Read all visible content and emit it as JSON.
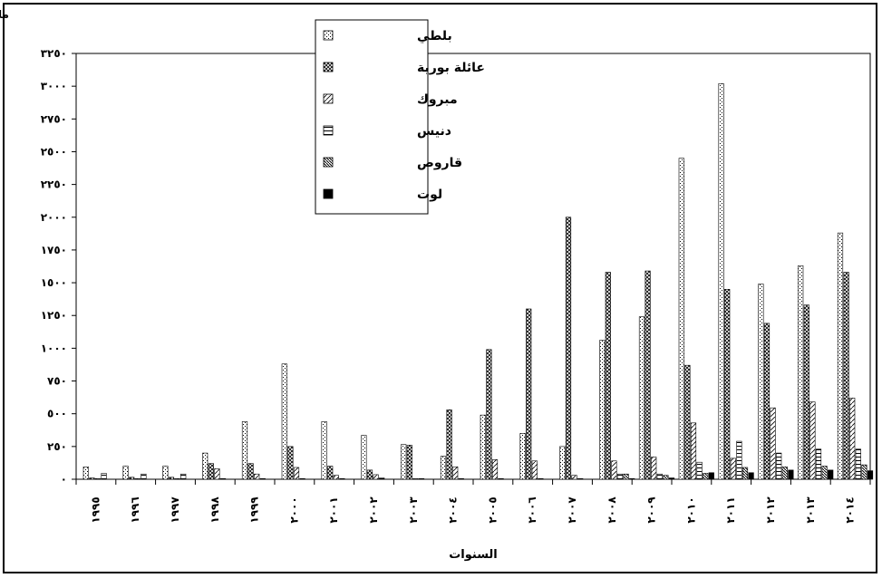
{
  "chart_data": {
    "type": "bar",
    "ylabel": "مليون جنية",
    "xlabel": "السنوات",
    "ylim": [
      0,
      3250
    ],
    "y_ticks": [
      0,
      250,
      500,
      750,
      1000,
      1250,
      1500,
      1750,
      2000,
      2250,
      2500,
      2750,
      3000,
      3250
    ],
    "y_tick_labels": [
      "٠",
      "٢٥٠",
      "٥٠٠",
      "٧٥٠",
      "١٠٠٠",
      "١٢٥٠",
      "١٥٠٠",
      "١٧٥٠",
      "٢٠٠٠",
      "٢٢٥٠",
      "٢٥٠٠",
      "٢٧٥٠",
      "٣٠٠٠",
      "٣٢٥٠"
    ],
    "categories": [
      "١٩٩٥",
      "١٩٩٦",
      "١٩٩٧",
      "١٩٩٨",
      "١٩٩٩",
      "٢٠٠٠",
      "٢٠٠١",
      "٢٠٠٢",
      "٢٠٠٣",
      "٢٠٠٤",
      "٢٠٠٥",
      "٢٠٠٦",
      "٢٠٠٧",
      "٢٠٠٨",
      "٢٠٠٩",
      "٢٠١٠",
      "٢٠١١",
      "٢٠١٢",
      "٢٠١٣",
      "٢٠١٤"
    ],
    "legend_position": "top-center",
    "grid": false,
    "series": [
      {
        "name": "بلطي",
        "pattern": "dots",
        "values": [
          95,
          100,
          100,
          200,
          440,
          880,
          440,
          335,
          265,
          175,
          490,
          350,
          250,
          1060,
          1240,
          2450,
          3020,
          1490,
          1630,
          1880
        ]
      },
      {
        "name": "عائلة بورية",
        "pattern": "crosshatch",
        "values": [
          10,
          15,
          15,
          120,
          120,
          250,
          100,
          70,
          260,
          530,
          990,
          1300,
          2000,
          1580,
          1590,
          870,
          1450,
          1190,
          1330,
          1580
        ]
      },
      {
        "name": "مبروك",
        "pattern": "diagonal",
        "values": [
          5,
          5,
          5,
          80,
          40,
          90,
          30,
          35,
          5,
          95,
          150,
          140,
          30,
          140,
          170,
          430,
          160,
          545,
          590,
          620
        ]
      },
      {
        "name": "دنيس",
        "pattern": "horizontal",
        "values": [
          45,
          40,
          40,
          5,
          5,
          5,
          5,
          10,
          5,
          5,
          5,
          5,
          5,
          40,
          40,
          130,
          290,
          200,
          230,
          230
        ]
      },
      {
        "name": "قاروص",
        "pattern": "diagonal-dense",
        "values": [
          0,
          0,
          0,
          0,
          0,
          0,
          0,
          0,
          0,
          0,
          0,
          0,
          0,
          40,
          30,
          45,
          90,
          95,
          100,
          110
        ]
      },
      {
        "name": "لوت",
        "pattern": "solid",
        "values": [
          0,
          0,
          0,
          0,
          0,
          0,
          0,
          0,
          0,
          0,
          0,
          0,
          0,
          5,
          10,
          50,
          50,
          70,
          70,
          65
        ]
      }
    ]
  }
}
